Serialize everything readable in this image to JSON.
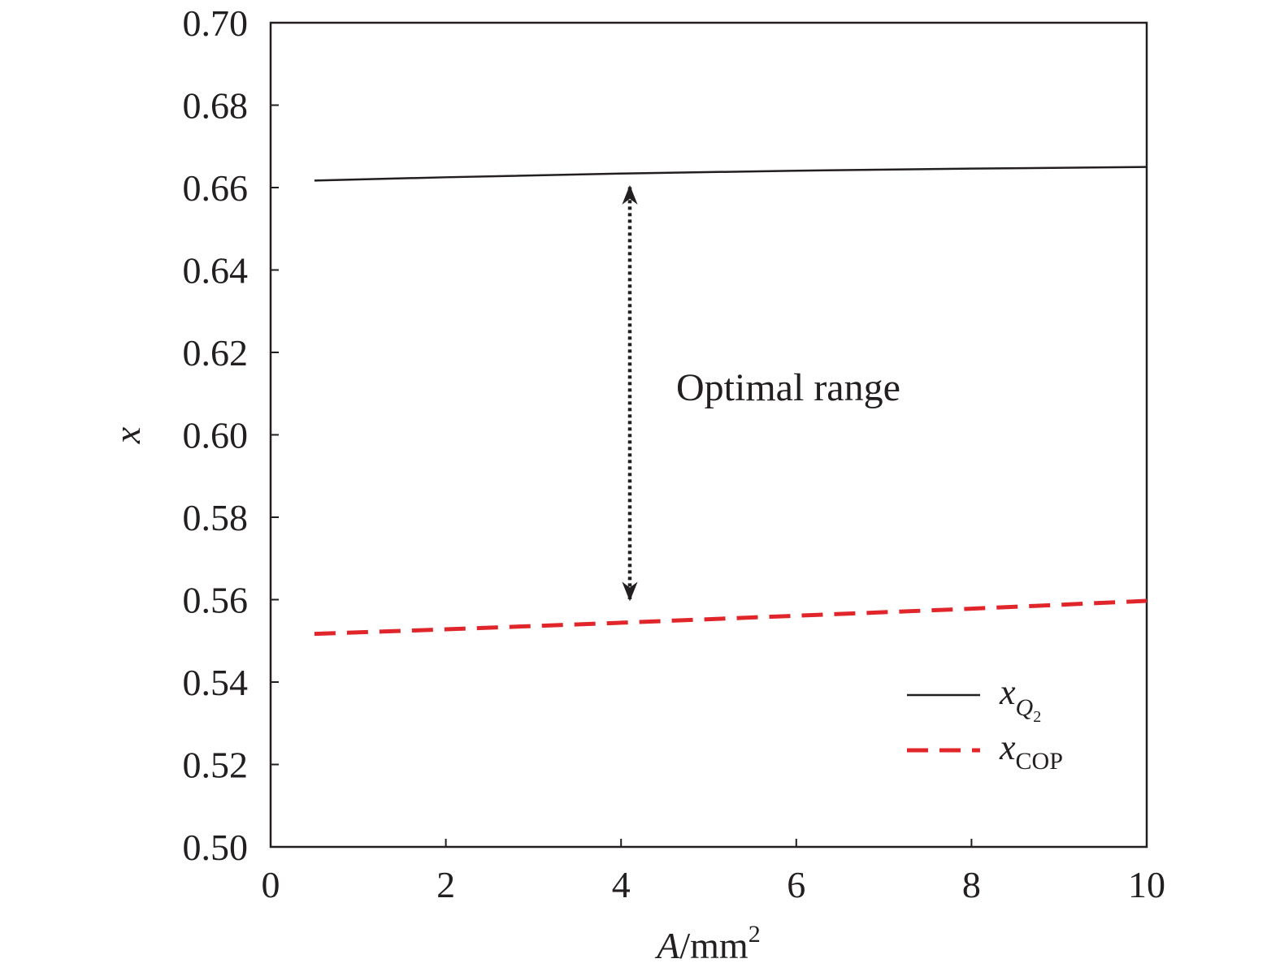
{
  "chart_data": {
    "type": "line",
    "xlabel": {
      "main": "A",
      "unit": "/mm",
      "sup": "2"
    },
    "ylabel": "x",
    "xlim": [
      0,
      10
    ],
    "ylim": [
      0.5,
      0.7
    ],
    "x_ticks": [
      0,
      2,
      4,
      6,
      8,
      10
    ],
    "x_tick_labels": [
      "0",
      "2",
      "4",
      "6",
      "8",
      "10"
    ],
    "y_ticks": [
      0.5,
      0.52,
      0.54,
      0.56,
      0.58,
      0.6,
      0.62,
      0.64,
      0.66,
      0.68,
      0.7
    ],
    "y_tick_labels": [
      "0.50",
      "0.52",
      "0.54",
      "0.56",
      "0.58",
      "0.60",
      "0.62",
      "0.64",
      "0.66",
      "0.68",
      "0.70"
    ],
    "grid": false,
    "legend_position": "bottom-right",
    "series": [
      {
        "name": "x_Q2",
        "legend": {
          "base": "x",
          "sub": "Q",
          "subsub": "2"
        },
        "color": "#231f20",
        "style": "solid",
        "x": [
          0.5,
          2,
          4,
          6,
          8,
          10
        ],
        "y": [
          0.6617,
          0.6625,
          0.6634,
          0.6641,
          0.6646,
          0.665
        ]
      },
      {
        "name": "x_COP",
        "legend": {
          "base": "x",
          "sub": "COP"
        },
        "color": "#e0262b",
        "style": "dashed",
        "x": [
          0.5,
          2,
          4,
          6,
          8,
          10
        ],
        "y": [
          0.5517,
          0.5528,
          0.5544,
          0.5561,
          0.5578,
          0.5597
        ]
      }
    ],
    "annotation": {
      "text": "Optimal range",
      "arrow_x": 4.1,
      "arrow_y_top": 0.6617,
      "arrow_y_bottom": 0.5593,
      "arrow_style": "dotted double-headed"
    }
  }
}
